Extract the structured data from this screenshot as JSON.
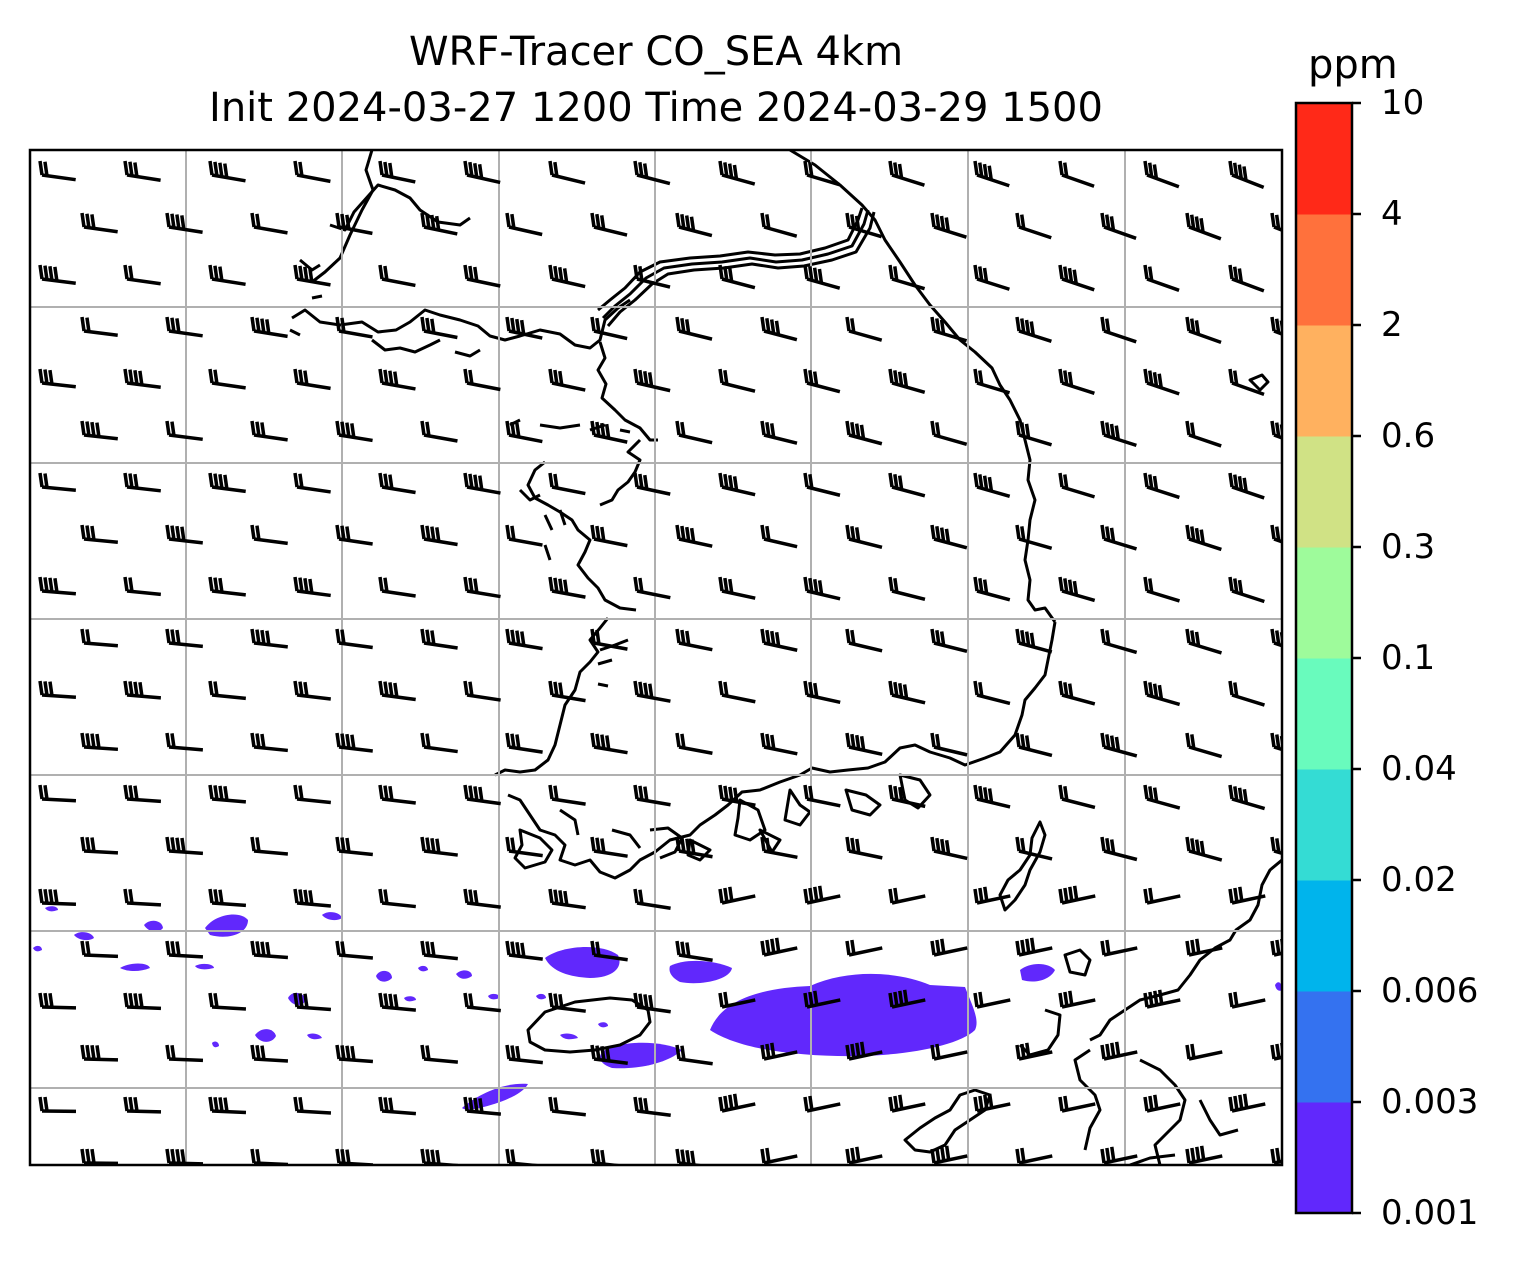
{
  "title": {
    "line1": "WRF-Tracer CO_SEA 4km",
    "line2": "Init 2024-03-27 1200 Time 2024-03-29 1500"
  },
  "colorbar": {
    "unit": "ppm",
    "levels": [
      "0.001",
      "0.003",
      "0.006",
      "0.02",
      "0.04",
      "0.1",
      "0.3",
      "0.6",
      "2",
      "4",
      "10"
    ],
    "colors": [
      "#6128fc",
      "#3472f0",
      "#00b4ec",
      "#34dcd4",
      "#69fbbd",
      "#9efb9b",
      "#d0e285",
      "#ffb15f",
      "#ff713c",
      "#ff2918"
    ]
  },
  "map": {
    "grid": true,
    "wind_barbs": true,
    "tracer_color": "#6128fc"
  }
}
